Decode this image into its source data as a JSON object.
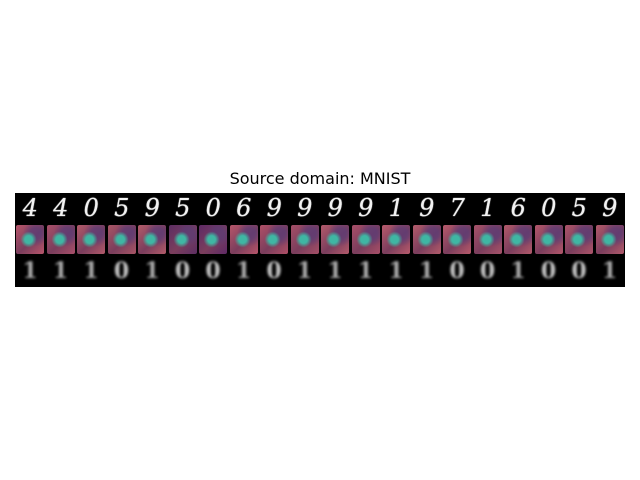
{
  "title": "Source domain: MNIST",
  "rows": {
    "source_digits": [
      "4",
      "4",
      "0",
      "5",
      "9",
      "5",
      "0",
      "6",
      "9",
      "9",
      "9",
      "9",
      "1",
      "9",
      "7",
      "1",
      "6",
      "0",
      "5",
      "9"
    ],
    "recon_palette": [
      "#b8566b",
      "#a9506a",
      "#b25a6a",
      "#a95666",
      "#b35c6a",
      "#5c2e63",
      "#5e2a66",
      "#b7566a",
      "#b05067",
      "#a54f67",
      "#b35a6b",
      "#a84f68",
      "#b85b6c",
      "#b35c6b",
      "#b85a6b",
      "#a7536a",
      "#b25a6b",
      "#b3576b",
      "#ad556a",
      "#b15a6b"
    ],
    "output_blobs": [
      "1",
      "1",
      "1",
      "0",
      "1",
      "0",
      "0",
      "1",
      "0",
      "1",
      "1",
      "1",
      "1",
      "1",
      "0",
      "0",
      "1",
      "0",
      "0",
      "1"
    ]
  }
}
